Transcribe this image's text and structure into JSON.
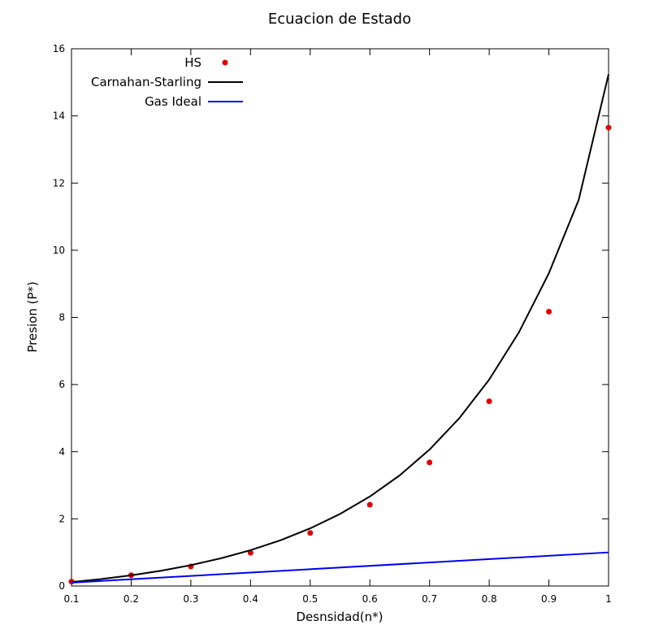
{
  "chart_data": {
    "type": "line",
    "title": "Ecuacion de Estado",
    "xlabel": "Desnsidad(n*)",
    "ylabel": "Presion (P*)",
    "xlim": [
      0.1,
      1.0
    ],
    "ylim": [
      0,
      16
    ],
    "xticks": [
      "0.1",
      "0.2",
      "0.3",
      "0.4",
      "0.5",
      "0.6",
      "0.7",
      "0.8",
      "0.9",
      "1"
    ],
    "yticks": [
      "0",
      "2",
      "4",
      "6",
      "8",
      "10",
      "12",
      "14",
      "16"
    ],
    "grid": false,
    "legend_position": "top-left",
    "series": [
      {
        "name": "HS",
        "kind": "scatter",
        "color": "#e00000",
        "x": [
          0.1,
          0.2,
          0.3,
          0.4,
          0.5,
          0.6,
          0.7,
          0.8,
          0.9,
          1.0
        ],
        "y": [
          0.13,
          0.32,
          0.58,
          0.99,
          1.58,
          2.42,
          3.68,
          5.5,
          8.17,
          13.65
        ]
      },
      {
        "name": "Carnahan-Starling",
        "kind": "line",
        "color": "#000000",
        "x": [
          0.1,
          0.15,
          0.2,
          0.25,
          0.3,
          0.35,
          0.4,
          0.45,
          0.5,
          0.55,
          0.6,
          0.65,
          0.7,
          0.75,
          0.8,
          0.85,
          0.9,
          0.95,
          1.0
        ],
        "y": [
          0.119,
          0.207,
          0.318,
          0.454,
          0.621,
          0.823,
          1.066,
          1.361,
          1.716,
          2.145,
          2.665,
          3.295,
          4.063,
          5.0,
          6.148,
          7.562,
          9.315,
          11.502,
          15.24
        ]
      },
      {
        "name": "Gas Ideal",
        "kind": "line",
        "color": "#0000ee",
        "x": [
          0.1,
          1.0
        ],
        "y": [
          0.1,
          1.0
        ]
      }
    ]
  }
}
